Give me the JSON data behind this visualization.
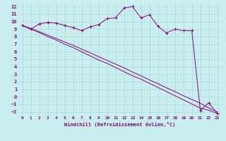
{
  "xlabel": "Windchill (Refroidissement éolien,°C)",
  "bg_color": "#c8eef0",
  "grid_color": "#b0d8da",
  "line_color": "#880088",
  "xlim": [
    -0.5,
    23.5
  ],
  "ylim": [
    -2.5,
    12.5
  ],
  "yticks": [
    -2,
    -1,
    0,
    1,
    2,
    3,
    4,
    5,
    6,
    7,
    8,
    9,
    10,
    11,
    12
  ],
  "xticks": [
    0,
    1,
    2,
    3,
    4,
    5,
    6,
    7,
    8,
    9,
    10,
    11,
    12,
    13,
    14,
    15,
    16,
    17,
    18,
    19,
    20,
    21,
    22,
    23
  ],
  "hours": [
    0,
    1,
    2,
    3,
    4,
    5,
    6,
    7,
    8,
    9,
    10,
    11,
    12,
    13,
    14,
    15,
    16,
    17,
    18,
    19,
    20,
    21,
    22,
    23
  ],
  "windchill": [
    9.5,
    9.0,
    9.7,
    9.9,
    9.8,
    9.5,
    9.2,
    8.8,
    9.3,
    9.6,
    10.4,
    10.5,
    11.8,
    12.0,
    10.5,
    10.9,
    9.4,
    8.5,
    9.0,
    8.8,
    8.8,
    -1.8,
    -0.8,
    -2.2
  ],
  "linear1": [
    9.5,
    9.0,
    8.55,
    8.0,
    7.55,
    7.0,
    6.55,
    6.0,
    5.45,
    4.9,
    4.45,
    3.9,
    3.35,
    2.8,
    2.35,
    1.8,
    1.25,
    0.7,
    0.15,
    -0.4,
    -0.95,
    -1.5,
    -1.8,
    -2.2
  ],
  "linear2": [
    9.5,
    9.1,
    8.65,
    8.2,
    7.75,
    7.3,
    6.85,
    6.35,
    5.85,
    5.35,
    4.85,
    4.35,
    3.85,
    3.3,
    2.8,
    2.25,
    1.75,
    1.2,
    0.7,
    0.15,
    -0.35,
    -0.85,
    -1.5,
    -2.0
  ]
}
